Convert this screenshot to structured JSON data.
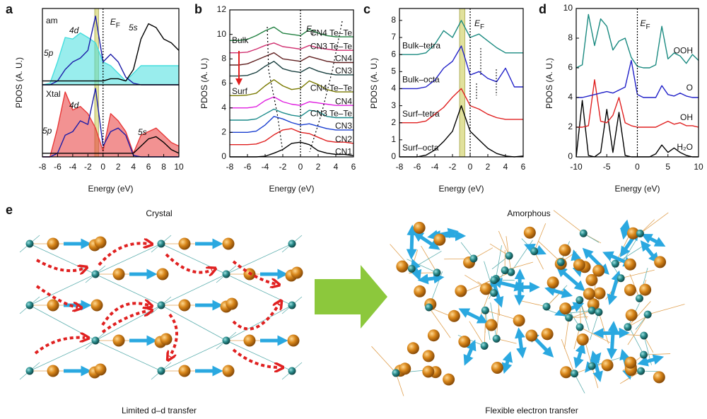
{
  "chart_data": [
    {
      "type": "line",
      "panel": "a",
      "label": "am",
      "ylabel": "PDOS (A. U.)",
      "ef": {
        "main": "E",
        "sub": "F"
      },
      "fermi_level": 0,
      "highlight": [
        -1.1,
        -0.6
      ],
      "x": [
        -8,
        -7,
        -6,
        -5,
        -4,
        -3,
        -2,
        -1,
        0,
        1,
        2,
        3,
        4,
        5,
        6,
        7,
        8,
        9,
        10
      ],
      "xlim": [
        -8,
        10
      ],
      "ylim": [
        0,
        1
      ],
      "series": [
        {
          "name": "5p",
          "color": "#45dede",
          "fill": true,
          "values": [
            0,
            0.02,
            0.3,
            0.62,
            0.6,
            0.68,
            0.62,
            0.55,
            0.3,
            0.25,
            0.15,
            0.05,
            0.15,
            0.25,
            0.25,
            0.25,
            0.25,
            0.25,
            0.25
          ]
        },
        {
          "name": "4d",
          "color": "#1c1ca8",
          "values": [
            0,
            0,
            0.05,
            0.2,
            0.3,
            0.35,
            0.45,
            0.9,
            0.3,
            0.4,
            0.3,
            0.1,
            0.02,
            0,
            0,
            0,
            0,
            0,
            0
          ]
        },
        {
          "name": "5s",
          "color": "#000000",
          "values": [
            0.05,
            0.05,
            0.05,
            0.05,
            0.05,
            0.05,
            0.05,
            0.05,
            0.05,
            0.08,
            0.08,
            0.05,
            0.2,
            0.6,
            0.8,
            0.75,
            0.6,
            0.55,
            0.45
          ]
        }
      ]
    },
    {
      "type": "line",
      "label": "Xtal",
      "xlabel": "Energy (eV)",
      "fermi_level": 0,
      "highlight": [
        -1.1,
        -0.6
      ],
      "x": [
        -8,
        -7,
        -6,
        -5,
        -4,
        -3,
        -2,
        -1,
        0,
        1,
        2,
        3,
        4,
        5,
        6,
        7,
        8,
        9,
        10
      ],
      "xlim": [
        -8,
        10
      ],
      "ylim": [
        0,
        1
      ],
      "xticks": [
        -8,
        -6,
        -4,
        -2,
        0,
        2,
        4,
        6,
        8,
        10
      ],
      "series": [
        {
          "name": "5p",
          "color": "#e83838",
          "fill": true,
          "values": [
            0,
            0,
            0.4,
            0.9,
            0.65,
            0.7,
            0.6,
            0.4,
            0.08,
            0.6,
            0.5,
            0.35,
            0.05,
            0.3,
            0.35,
            0.4,
            0.3,
            0.2,
            0.15
          ]
        },
        {
          "name": "4d",
          "color": "#1c1ca8",
          "values": [
            0,
            0,
            0.05,
            0.3,
            0.35,
            0.5,
            0.45,
            0.95,
            0.15,
            0.35,
            0.4,
            0.3,
            0.02,
            0,
            0,
            0,
            0,
            0,
            0
          ]
        },
        {
          "name": "5s",
          "color": "#000000",
          "values": [
            0.05,
            0.05,
            0.05,
            0.05,
            0.05,
            0.05,
            0.05,
            0.05,
            0.05,
            0.05,
            0.05,
            0.05,
            0.05,
            0.15,
            0.25,
            0.28,
            0.2,
            0.1,
            0.05
          ]
        }
      ]
    },
    {
      "type": "line",
      "panel": "b",
      "ylabel": "PDOS (A. U.)",
      "xlabel": "Energy (eV)",
      "ef": {
        "main": "E",
        "sub": "F"
      },
      "fermi_level": 0,
      "annotations": [
        {
          "text": "Bulk"
        },
        {
          "text": "Surf"
        }
      ],
      "x": [
        -8,
        -7,
        -6,
        -5,
        -4,
        -3,
        -2,
        -1,
        0,
        1,
        2,
        3,
        4,
        5,
        6
      ],
      "xlim": [
        -8,
        6
      ],
      "ylim": [
        0,
        12
      ],
      "xticks": [
        -8,
        -6,
        -4,
        -2,
        0,
        2,
        4,
        6
      ],
      "yticks": [
        0,
        2,
        4,
        6,
        8,
        10,
        12
      ],
      "series": [
        {
          "name": "CN1",
          "color": "#000000",
          "values": [
            0,
            0,
            0,
            0,
            0.05,
            0.3,
            0.6,
            1.1,
            1.2,
            1.0,
            0.5,
            0.3,
            0.2,
            0.2,
            0.1
          ]
        },
        {
          "name": "CN2",
          "color": "#e02020",
          "values": [
            1,
            1,
            1,
            1.05,
            1.3,
            1.8,
            2.2,
            2.3,
            2.0,
            1.9,
            1.6,
            1.3,
            1.2,
            1.2,
            1.1
          ]
        },
        {
          "name": "CN3",
          "color": "#1a3fd0",
          "values": [
            2,
            2,
            2,
            2.1,
            2.6,
            3.3,
            3.1,
            2.8,
            2.6,
            2.7,
            2.5,
            2.3,
            2.2,
            2.2,
            2.2
          ]
        },
        {
          "name": "CN3 Te–Te",
          "color": "#1a8a8a",
          "values": [
            3,
            3,
            3,
            3.1,
            3.5,
            3.9,
            3.6,
            3.4,
            3.3,
            3.8,
            3.7,
            3.3,
            3.2,
            3.2,
            3.2
          ]
        },
        {
          "name": "CN4",
          "color": "#e020e0",
          "values": [
            4,
            4,
            4,
            4.1,
            4.6,
            4.9,
            4.5,
            4.3,
            4.2,
            4.5,
            4.4,
            4.3,
            4.2,
            4.2,
            4.2
          ]
        },
        {
          "name": "CN4 Te–Te",
          "color": "#7a7a00",
          "values": [
            5,
            5,
            5.05,
            5.2,
            5.8,
            6.3,
            5.8,
            5.5,
            5.6,
            6.2,
            5.9,
            5.5,
            5.3,
            5.3,
            5.3
          ]
        },
        {
          "name": "CN3",
          "color": "#1a4040",
          "values": [
            6.6,
            6.6,
            6.65,
            6.9,
            7.4,
            7.8,
            7.2,
            7.0,
            6.9,
            7.3,
            7.0,
            6.8,
            6.7,
            6.7,
            6.7
          ]
        },
        {
          "name": "CN4",
          "color": "#602020",
          "values": [
            7.5,
            7.5,
            7.6,
            7.9,
            8.2,
            8.5,
            8.0,
            7.9,
            7.8,
            8.2,
            8.0,
            7.8,
            7.7,
            7.7,
            7.7
          ]
        },
        {
          "name": "CN3 Te–Te",
          "color": "#d03070",
          "values": [
            8.5,
            8.5,
            8.55,
            8.8,
            9.1,
            9.3,
            9.0,
            8.9,
            8.8,
            9.1,
            8.9,
            8.8,
            8.7,
            8.7,
            8.7
          ]
        },
        {
          "name": "CN4 Te–Te",
          "color": "#208040",
          "values": [
            9.5,
            9.5,
            9.6,
            9.9,
            10.3,
            10.6,
            10.1,
            10.0,
            9.9,
            10.4,
            10.1,
            9.9,
            9.8,
            9.8,
            9.8
          ]
        }
      ]
    },
    {
      "type": "line",
      "panel": "c",
      "ylabel": "PDOS (A. U.)",
      "xlabel": "Energy (eV)",
      "ef": {
        "main": "E",
        "sub": "F"
      },
      "fermi_level": 0,
      "highlight": [
        -1.2,
        -0.6
      ],
      "x": [
        -8,
        -7,
        -6,
        -5,
        -4,
        -3,
        -2,
        -1,
        0,
        1,
        2,
        3,
        4,
        5,
        6
      ],
      "xlim": [
        -8,
        6
      ],
      "ylim": [
        0,
        8.7
      ],
      "xticks": [
        -8,
        -6,
        -4,
        -2,
        0,
        2,
        4,
        6
      ],
      "yticks": [
        0,
        1,
        2,
        3,
        4,
        5,
        6,
        7,
        8
      ],
      "series": [
        {
          "name": "Surf–octa",
          "color": "#000000",
          "values": [
            0,
            0,
            0,
            0.1,
            0.4,
            0.9,
            1.5,
            3.0,
            1.5,
            1.0,
            0.5,
            0.2,
            0.05,
            0,
            0.05
          ]
        },
        {
          "name": "Surf–tetra",
          "color": "#e02020",
          "values": [
            2,
            2,
            2,
            2.1,
            2.5,
            2.9,
            3.5,
            4.0,
            3.0,
            2.8,
            2.5,
            2.3,
            2.2,
            2.2,
            2.2
          ]
        },
        {
          "name": "Bulk–octa",
          "color": "#2020c8",
          "values": [
            4,
            4,
            4,
            4.1,
            4.5,
            5.2,
            5.6,
            6.5,
            4.8,
            5.0,
            4.6,
            4.4,
            5.2,
            4.1,
            4.1
          ]
        },
        {
          "name": "Bulk–tetra",
          "color": "#1a8a80",
          "values": [
            6,
            6,
            6,
            6.1,
            6.6,
            7.4,
            7.0,
            8.0,
            7.0,
            7.2,
            6.8,
            6.4,
            6.1,
            6.1,
            6.1
          ]
        }
      ]
    },
    {
      "type": "line",
      "panel": "d",
      "ylabel": "PDOS (A. U.)",
      "xlabel": "Energy (eV)",
      "ef": {
        "main": "E",
        "sub": "F"
      },
      "fermi_level": 0,
      "x": [
        -10,
        -9,
        -8,
        -7,
        -6,
        -5,
        -4,
        -3,
        -2,
        -1,
        0,
        1,
        2,
        3,
        4,
        5,
        6,
        7,
        8,
        9,
        10
      ],
      "xlim": [
        -10,
        10
      ],
      "ylim": [
        0,
        10
      ],
      "xticks": [
        -10,
        -5,
        0,
        5,
        10
      ],
      "yticks": [
        0,
        2,
        4,
        6,
        8,
        10
      ],
      "series": [
        {
          "name": "H₂O",
          "color": "#000000",
          "values": [
            0,
            3.8,
            0.1,
            0,
            0.3,
            3.2,
            0.3,
            3.0,
            0.1,
            0,
            0,
            0,
            0,
            0.2,
            0.8,
            0.3,
            0.6,
            0.3,
            0.1,
            0,
            0
          ]
        },
        {
          "name": "OH",
          "color": "#e02020",
          "values": [
            2,
            2,
            2.1,
            5.2,
            2.4,
            2.3,
            2.8,
            4.0,
            2.3,
            2.1,
            2,
            2,
            2,
            2,
            2.2,
            2.4,
            2.2,
            2.3,
            2.1,
            2.1,
            2
          ]
        },
        {
          "name": "O",
          "color": "#2020c8",
          "values": [
            4,
            4,
            4.1,
            4.2,
            4.3,
            4.4,
            4.3,
            4.5,
            4.7,
            6.5,
            4.2,
            4,
            4,
            4,
            4.8,
            4.2,
            4.1,
            4.3,
            4.1,
            4,
            4
          ]
        },
        {
          "name": "OOH",
          "color": "#1a8a80",
          "values": [
            6,
            6.2,
            9.6,
            7.5,
            9.3,
            8.8,
            7.2,
            7.8,
            8.0,
            6.7,
            6.1,
            6.0,
            6.0,
            6.2,
            8.8,
            6.6,
            7.0,
            6.8,
            6.3,
            6.9,
            6.5
          ]
        }
      ]
    }
  ],
  "diagram": {
    "panel": "e",
    "left_title": "Crystal",
    "right_title": "Amorphous",
    "left_caption": "Limited d–d transfer",
    "right_caption": "Flexible electron transfer"
  }
}
